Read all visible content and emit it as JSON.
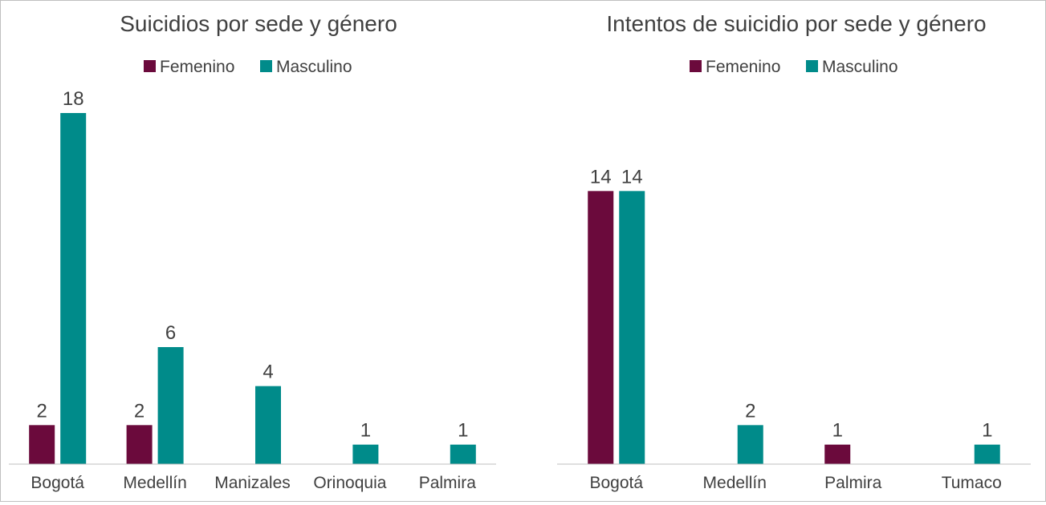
{
  "colors": {
    "femenino": "#6b0a3c",
    "masculino": "#008b8a",
    "axis": "#bfbfbf",
    "text": "#404040"
  },
  "chart_data": [
    {
      "type": "bar",
      "title": "Suicidios por sede y género",
      "legend_position": "top-center",
      "grid": false,
      "categories": [
        "Bogotá",
        "Medellín",
        "Manizales",
        "Orinoquia",
        "Palmira"
      ],
      "series": [
        {
          "name": "Femenino",
          "values": [
            2,
            2,
            null,
            null,
            null
          ]
        },
        {
          "name": "Masculino",
          "values": [
            18,
            6,
            4,
            1,
            1
          ]
        }
      ],
      "ylim": [
        0,
        18
      ]
    },
    {
      "type": "bar",
      "title": "Intentos de suicidio por sede y género",
      "legend_position": "top-center",
      "grid": false,
      "categories": [
        "Bogotá",
        "Medellín",
        "Palmira",
        "Tumaco"
      ],
      "series": [
        {
          "name": "Femenino",
          "values": [
            14,
            null,
            1,
            null
          ]
        },
        {
          "name": "Masculino",
          "values": [
            14,
            2,
            null,
            1
          ]
        }
      ],
      "ylim": [
        0,
        18
      ]
    }
  ]
}
